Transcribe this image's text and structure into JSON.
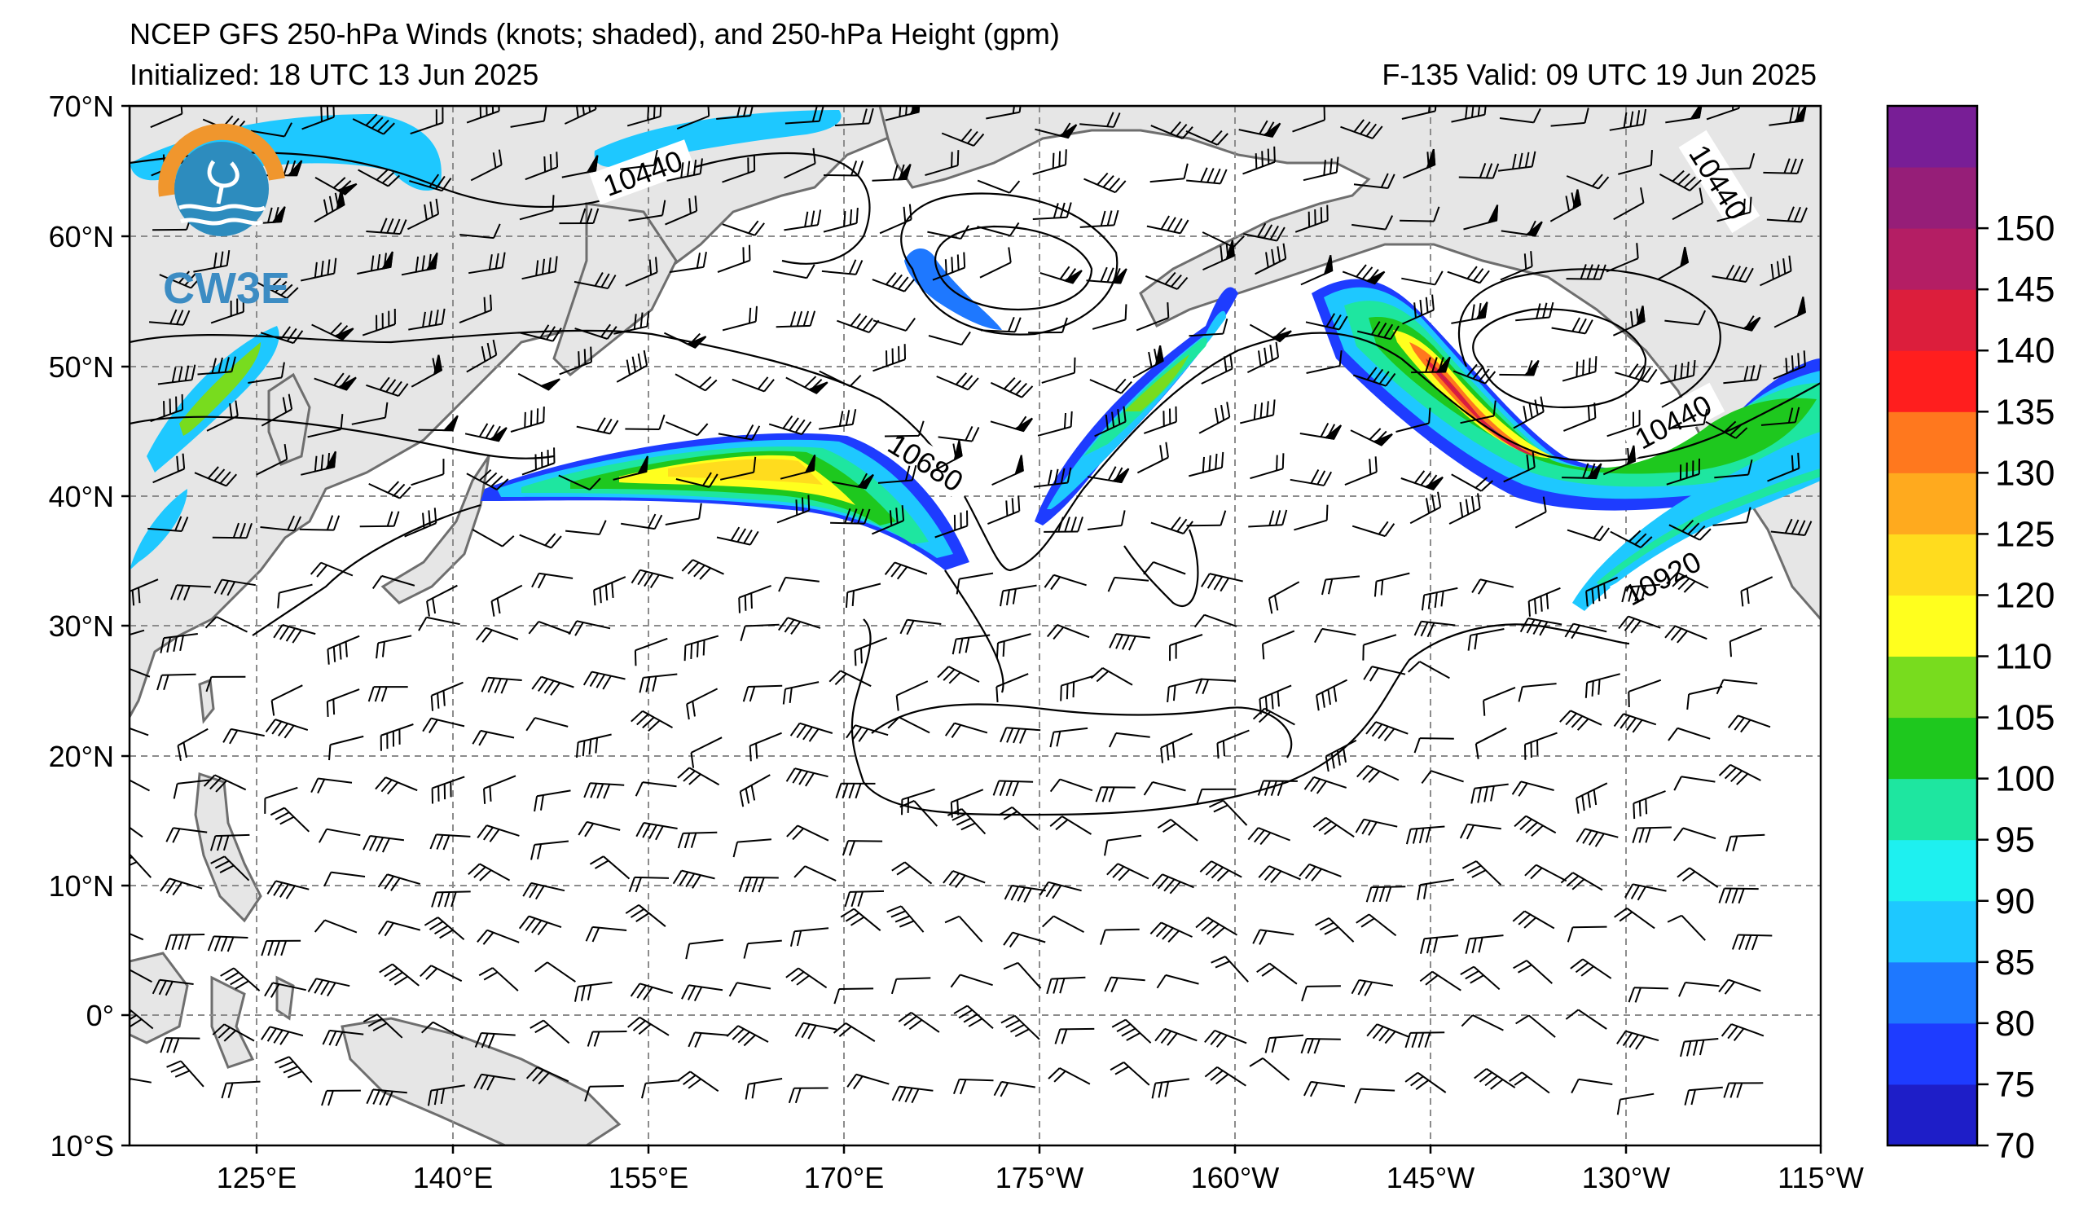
{
  "title_line1": "NCEP GFS 250-hPa Winds (knots; shaded), and 250-hPa Height (gpm)",
  "title_line2": "Initialized: 18 UTC 13 Jun 2025",
  "valid_text": "F-135  Valid: 09 UTC 19 Jun 2025",
  "logo_text": "CW3E",
  "lat_labels": [
    "70°N",
    "60°N",
    "50°N",
    "40°N",
    "30°N",
    "20°N",
    "10°N",
    "0°",
    "10°S"
  ],
  "lon_labels": [
    "125°E",
    "140°E",
    "155°E",
    "170°E",
    "175°W",
    "160°W",
    "145°W",
    "130°W",
    "115°W"
  ],
  "contour_labels": [
    "10440",
    "10680",
    "10440",
    "10440",
    "10920"
  ],
  "colorbar": {
    "ticks": [
      "70",
      "75",
      "80",
      "85",
      "90",
      "95",
      "100",
      "105",
      "110",
      "120",
      "125",
      "130",
      "135",
      "140",
      "145",
      "150"
    ],
    "colors": [
      "#1e1ec8",
      "#1e3cff",
      "#1e78ff",
      "#1ec8ff",
      "#1ef0f0",
      "#1ee6a0",
      "#1ec81e",
      "#78dc1e",
      "#ffff1e",
      "#ffdc1e",
      "#ffaa1e",
      "#ff781e",
      "#ff1e1e",
      "#dc1e3c",
      "#b41e64",
      "#961e78",
      "#781e96"
    ]
  },
  "colors": {
    "land": "#e6e6e6",
    "coast": "#6e6e6e",
    "grid": "#8c8c8c"
  }
}
